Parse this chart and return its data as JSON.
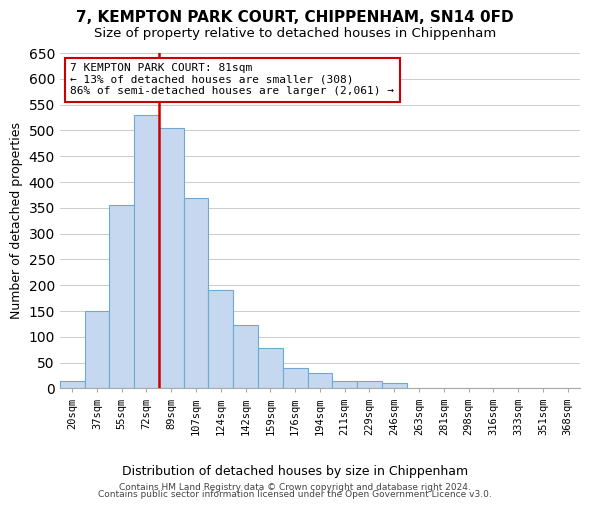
{
  "title": "7, KEMPTON PARK COURT, CHIPPENHAM, SN14 0FD",
  "subtitle": "Size of property relative to detached houses in Chippenham",
  "xlabel": "Distribution of detached houses by size in Chippenham",
  "ylabel": "Number of detached properties",
  "bin_labels": [
    "20sqm",
    "37sqm",
    "55sqm",
    "72sqm",
    "89sqm",
    "107sqm",
    "124sqm",
    "142sqm",
    "159sqm",
    "176sqm",
    "194sqm",
    "211sqm",
    "229sqm",
    "246sqm",
    "263sqm",
    "281sqm",
    "298sqm",
    "316sqm",
    "333sqm",
    "351sqm",
    "368sqm"
  ],
  "bar_values": [
    15,
    150,
    355,
    530,
    505,
    370,
    190,
    123,
    78,
    40,
    30,
    15,
    15,
    10,
    0,
    0,
    0,
    0,
    0,
    0,
    0
  ],
  "bar_color": "#c5d8f0",
  "bar_edge_color": "#6fa8d0",
  "vline_pos": 3.5,
  "vline_color": "#cc0000",
  "ylim": [
    0,
    650
  ],
  "yticks": [
    0,
    50,
    100,
    150,
    200,
    250,
    300,
    350,
    400,
    450,
    500,
    550,
    600,
    650
  ],
  "annotation_title": "7 KEMPTON PARK COURT: 81sqm",
  "annotation_line1": "← 13% of detached houses are smaller (308)",
  "annotation_line2": "86% of semi-detached houses are larger (2,061) →",
  "annotation_box_color": "#ffffff",
  "annotation_box_edge": "#cc0000",
  "footer_line1": "Contains HM Land Registry data © Crown copyright and database right 2024.",
  "footer_line2": "Contains public sector information licensed under the Open Government Licence v3.0.",
  "background_color": "#ffffff",
  "grid_color": "#cccccc"
}
